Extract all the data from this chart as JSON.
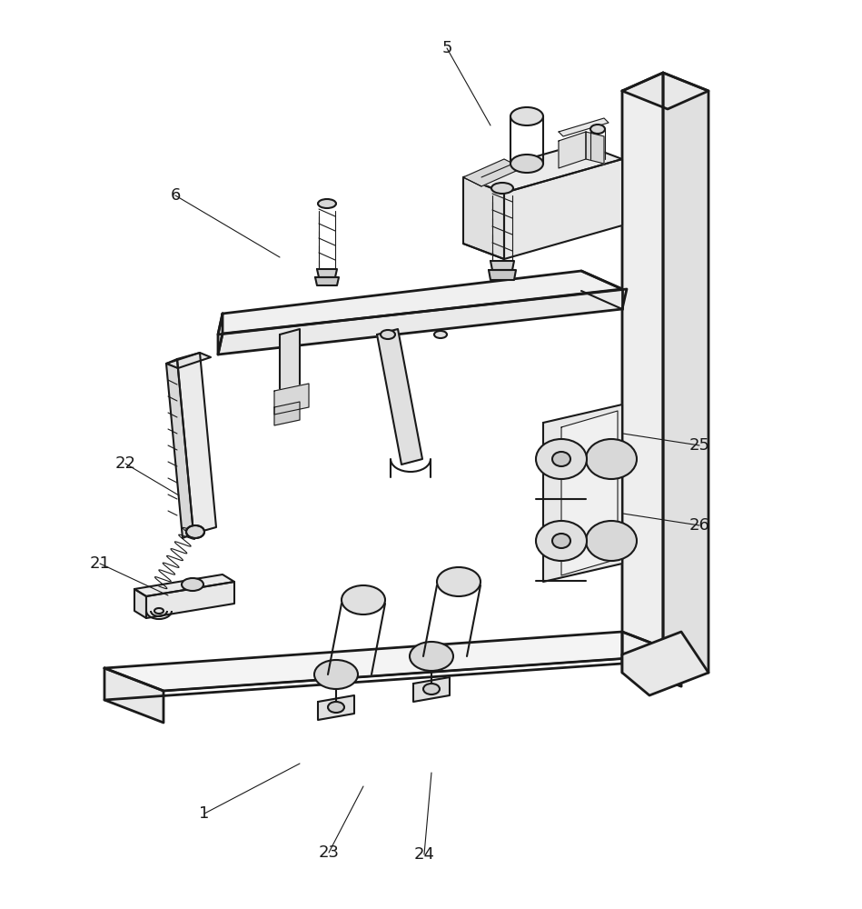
{
  "bg_color": "#ffffff",
  "line_color": "#1a1a1a",
  "lw": 1.5,
  "lw_thin": 0.8,
  "lw_heavy": 2.0,
  "fig_width": 9.49,
  "fig_height": 10.0
}
